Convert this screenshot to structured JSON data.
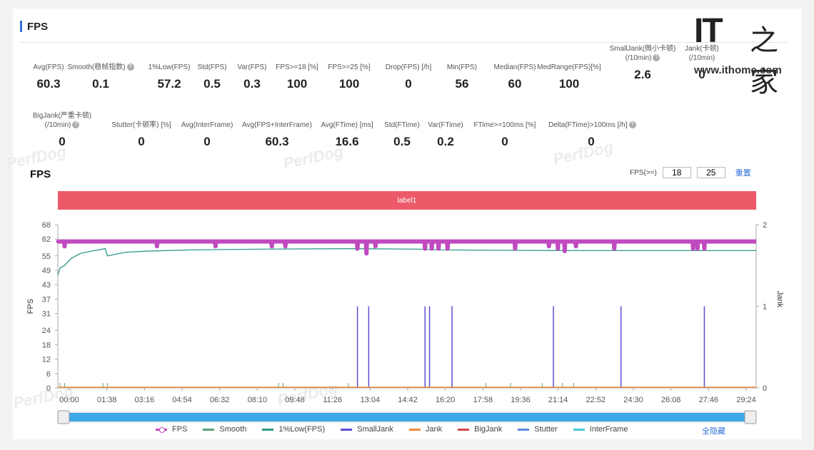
{
  "header": {
    "title": "FPS"
  },
  "logo": {
    "it": "IT",
    "zh": "之家",
    "url": "www.ithome.com"
  },
  "stats_row1": [
    {
      "label": "Avg(FPS)",
      "value": "60.3"
    },
    {
      "label": "Smooth(稳帧指数)",
      "value": "0.1"
    },
    {
      "label": "1%Low(FPS)",
      "value": "57.2"
    },
    {
      "label": "Std(FPS)",
      "value": "0.5"
    },
    {
      "label": "Var(FPS)",
      "value": "0.3"
    },
    {
      "label": "FPS>=18 [%]",
      "value": "100"
    },
    {
      "label": "FPS>=25 [%]",
      "value": "100"
    },
    {
      "label": "Drop(FPS) [/h]",
      "value": "0"
    },
    {
      "label": "Min(FPS)",
      "value": "56"
    },
    {
      "label": "Median(FPS)",
      "value": "60"
    },
    {
      "label": "MedRange(FPS)[%]",
      "value": "100"
    },
    {
      "label": "SmallJank(微小卡顿)",
      "label2": "(/10min)",
      "value": "2.6"
    },
    {
      "label": "Jank(卡顿)",
      "label2": "(/10min)",
      "value": "0"
    }
  ],
  "stats_row2": [
    {
      "label": "BigJank(严重卡顿)",
      "label2": "(/10min)",
      "value": "0"
    },
    {
      "label": "Stutter(卡顿率) [%]",
      "value": "0"
    },
    {
      "label": "Avg(InterFrame)",
      "value": "0"
    },
    {
      "label": "Avg(FPS+InterFrame)",
      "value": "60.3"
    },
    {
      "label": "Avg(FTime) [ms]",
      "value": "16.6"
    },
    {
      "label": "Std(FTime)",
      "value": "0.5"
    },
    {
      "label": "Var(FTime)",
      "value": "0.2"
    },
    {
      "label": "FTime>=100ms [%]",
      "value": "0"
    },
    {
      "label": "Delta(FTime)>100ms [/h]",
      "value": "0"
    }
  ],
  "help_icon": "?",
  "chart_section": {
    "title": "FPS",
    "fps_threshold_label": "FPS(>=)",
    "threshold1": "18",
    "threshold2": "25",
    "reset_label": "重置",
    "label_bar": "label1"
  },
  "watermark": "PerfDog",
  "chart_data": {
    "type": "line",
    "xlabel": "",
    "ylabel": "FPS",
    "y2label": "Jank",
    "x_ticks": [
      "00:00",
      "01:38",
      "03:16",
      "04:54",
      "06:32",
      "08:10",
      "09:48",
      "11:26",
      "13:04",
      "14:42",
      "16:20",
      "17:58",
      "19:36",
      "21:14",
      "22:52",
      "24:30",
      "26:08",
      "27:46",
      "29:24"
    ],
    "y_ticks": [
      0,
      6,
      12,
      18,
      24,
      31,
      37,
      43,
      49,
      55,
      62,
      68
    ],
    "y2_ticks": [
      0,
      1,
      2
    ],
    "ylim": [
      0,
      68
    ],
    "y2lim": [
      0,
      2
    ],
    "xlim_minutes": [
      0,
      31
    ],
    "series": [
      {
        "name": "FPS",
        "color": "#c04ac0",
        "baseline": 61,
        "dips_minutes": [
          0.3,
          4.4,
          7.0,
          9.5,
          10.1,
          13.3,
          13.7,
          14.1,
          16.3,
          16.6,
          16.9,
          17.3,
          20.3,
          21.8,
          22.2,
          22.5,
          23.0,
          24.7,
          28.2,
          28.4,
          28.7
        ],
        "dip_values": [
          59,
          59,
          59,
          59,
          59,
          58,
          56,
          59,
          58,
          58,
          58,
          58,
          58,
          59,
          58,
          57,
          59,
          58,
          58,
          58,
          58
        ]
      },
      {
        "name": "Smooth",
        "color": "#5aa17a"
      },
      {
        "name": "1%Low(FPS)",
        "color": "#2f9a8a",
        "points": [
          [
            0,
            47
          ],
          [
            0.1,
            50
          ],
          [
            0.3,
            51
          ],
          [
            0.6,
            54
          ],
          [
            1.0,
            56
          ],
          [
            1.5,
            57
          ],
          [
            2.1,
            58
          ],
          [
            2.2,
            55
          ],
          [
            3.0,
            56.5
          ],
          [
            4.0,
            57
          ],
          [
            6.0,
            57.5
          ],
          [
            9.0,
            57.8
          ],
          [
            13.0,
            58
          ],
          [
            16.0,
            57.8
          ],
          [
            17.0,
            57.5
          ],
          [
            20.0,
            57.3
          ],
          [
            23.0,
            57.2
          ],
          [
            31.0,
            57.2
          ]
        ]
      },
      {
        "name": "SmallJank",
        "color": "#5b4fd0",
        "spikes_minutes": [
          13.3,
          13.8,
          16.3,
          16.5,
          17.5,
          22.0,
          25.0,
          28.7
        ]
      },
      {
        "name": "Jank",
        "color": "#f08a3c"
      },
      {
        "name": "BigJank",
        "color": "#d0454c"
      },
      {
        "name": "Stutter",
        "color": "#5a8ae0"
      },
      {
        "name": "InterFrame",
        "color": "#4ec4e0"
      }
    ]
  },
  "legend_hide_all": "全隐藏"
}
